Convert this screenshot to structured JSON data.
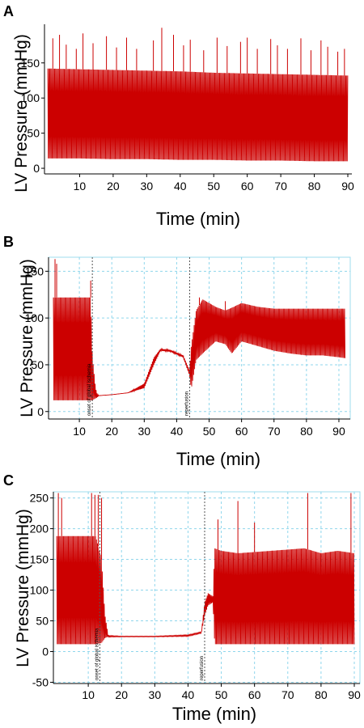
{
  "chart_data": [
    {
      "panel": "A",
      "type": "line",
      "xlabel": "Time (min)",
      "ylabel": "LV Pressure (mmHg)",
      "xlim": [
        0,
        90
      ],
      "ylim": [
        -8,
        205
      ],
      "xticks": [
        10,
        20,
        30,
        40,
        50,
        60,
        70,
        80,
        90
      ],
      "yticks": [
        0,
        50,
        100,
        150
      ],
      "grid": false,
      "color": "#cc0000",
      "annotations": [],
      "envelope": {
        "x": [
          0.5,
          10,
          20,
          30,
          40,
          50,
          60,
          70,
          80,
          90
        ],
        "max": [
          142,
          141,
          140,
          139,
          138,
          136,
          135,
          134,
          133,
          132
        ],
        "min": [
          14,
          14,
          13,
          13,
          12,
          12,
          11,
          11,
          10,
          10
        ]
      },
      "spikes": {
        "x": [
          2,
          4,
          6,
          9,
          11,
          14,
          18,
          21,
          24,
          27,
          32,
          34.5,
          38,
          41,
          43,
          47,
          51,
          54,
          58,
          60,
          63,
          67,
          69,
          72,
          76,
          79,
          82,
          84,
          87,
          89
        ],
        "y": [
          185,
          190,
          176,
          170,
          192,
          178,
          188,
          172,
          186,
          170,
          182,
          200,
          190,
          175,
          183,
          168,
          186,
          174,
          180,
          186,
          170,
          184,
          175,
          170,
          185,
          168,
          182,
          173,
          166,
          170
        ]
      }
    },
    {
      "panel": "B",
      "type": "line",
      "xlabel": "Time (min)",
      "ylabel": "LV Pressure (mmHg)",
      "xlim": [
        1,
        93
      ],
      "ylim": [
        -8,
        165
      ],
      "xticks": [
        10,
        20,
        30,
        40,
        50,
        60,
        70,
        80,
        90
      ],
      "yticks": [
        0,
        50,
        100,
        150
      ],
      "grid": true,
      "color": "#cc0000",
      "annotations": [
        {
          "x": 14,
          "text": "onset of global ischemia"
        },
        {
          "x": 44,
          "text": "reperfusion"
        }
      ],
      "envelope": {
        "x": [
          2,
          13.5,
          14,
          15,
          15.5,
          16,
          20,
          25,
          30,
          33,
          35,
          38,
          42,
          44,
          44.5,
          46,
          48,
          52,
          55,
          57,
          60,
          65,
          70,
          75,
          80,
          85,
          90,
          92
        ],
        "max": [
          122,
          122,
          60,
          25,
          19,
          17,
          18,
          20,
          30,
          58,
          67,
          66,
          60,
          44,
          70,
          108,
          120,
          112,
          108,
          111,
          116,
          112,
          110,
          110,
          110,
          110,
          110,
          110
        ],
        "min": [
          12,
          12,
          12,
          14,
          15,
          17,
          18,
          20,
          25,
          50,
          65,
          64,
          58,
          38,
          24,
          55,
          62,
          75,
          72,
          62,
          75,
          70,
          65,
          62,
          60,
          60,
          58,
          57
        ]
      },
      "spikes": {
        "x": [
          2.5,
          3,
          13.5,
          44.2,
          47,
          55
        ],
        "y": [
          163,
          158,
          140,
          52,
          122,
          118
        ]
      }
    },
    {
      "panel": "C",
      "type": "line",
      "xlabel": "Time (min)",
      "ylabel": "LV Pressure (mmHg)",
      "xlim": [
        0,
        90
      ],
      "ylim": [
        -52,
        260
      ],
      "xticks": [
        10,
        20,
        30,
        40,
        50,
        60,
        70,
        80,
        90
      ],
      "yticks": [
        -50,
        0,
        50,
        100,
        150,
        200,
        250
      ],
      "grid": true,
      "color": "#cc0000",
      "annotations": [
        {
          "x": 13.5,
          "text": "onset of global ischemia"
        },
        {
          "x": 45,
          "text": "reperfusion"
        }
      ],
      "envelope": {
        "x": [
          0.5,
          12,
          12.2,
          14,
          15,
          16,
          20,
          30,
          40,
          44,
          45,
          46,
          47.5,
          48,
          50,
          55,
          60,
          65,
          70,
          75,
          80,
          85,
          90
        ],
        "max": [
          188,
          188,
          188,
          150,
          60,
          26,
          25,
          25,
          27,
          32,
          80,
          95,
          90,
          168,
          164,
          160,
          162,
          164,
          166,
          168,
          160,
          164,
          160
        ],
        "min": [
          12,
          12,
          12,
          14,
          22,
          24,
          24,
          24,
          25,
          30,
          58,
          75,
          80,
          12,
          12,
          12,
          12,
          12,
          12,
          12,
          12,
          12,
          12
        ]
      },
      "spikes": {
        "x": [
          1,
          2,
          11,
          12,
          13,
          14,
          49,
          55,
          60,
          76,
          89
        ],
        "y": [
          258,
          250,
          258,
          255,
          255,
          250,
          215,
          245,
          210,
          258,
          258
        ]
      }
    }
  ]
}
